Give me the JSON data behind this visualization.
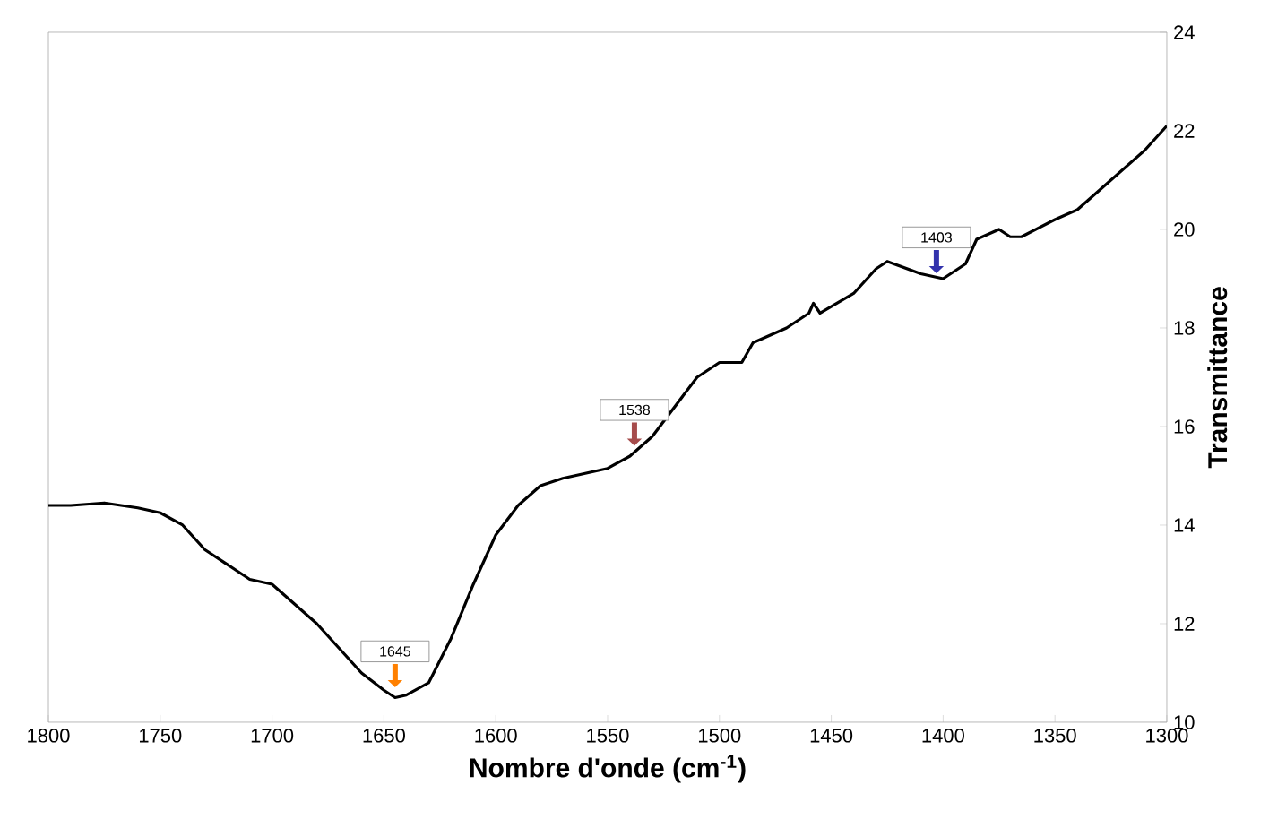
{
  "chart_data": {
    "type": "line",
    "xlabel": "Nombre d'onde (cm$^{-1}$)",
    "ylabel": "Transmittance",
    "x": [
      1800,
      1790,
      1775,
      1760,
      1750,
      1740,
      1730,
      1720,
      1710,
      1700,
      1690,
      1680,
      1670,
      1660,
      1650,
      1645,
      1640,
      1630,
      1620,
      1610,
      1600,
      1590,
      1580,
      1570,
      1560,
      1550,
      1540,
      1530,
      1520,
      1510,
      1500,
      1490,
      1485,
      1470,
      1460,
      1458,
      1455,
      1440,
      1430,
      1425,
      1410,
      1400,
      1390,
      1385,
      1375,
      1370,
      1365,
      1350,
      1340,
      1330,
      1320,
      1310,
      1300
    ],
    "series": [
      {
        "color": "#000000",
        "values": [
          14.4,
          14.4,
          14.45,
          14.35,
          14.25,
          14.0,
          13.5,
          13.2,
          12.9,
          12.8,
          12.4,
          12.0,
          11.5,
          11.0,
          10.65,
          10.5,
          10.55,
          10.8,
          11.7,
          12.8,
          13.8,
          14.4,
          14.8,
          14.95,
          15.05,
          15.15,
          15.4,
          15.8,
          16.4,
          17.0,
          17.3,
          17.3,
          17.7,
          18.0,
          18.3,
          18.5,
          18.3,
          18.7,
          19.2,
          19.35,
          19.1,
          19.0,
          19.3,
          19.8,
          20.0,
          19.85,
          19.85,
          20.2,
          20.4,
          20.8,
          21.2,
          21.6,
          22.1
        ]
      }
    ],
    "xlim": [
      1800,
      1300
    ],
    "xticks": [
      1800,
      1750,
      1700,
      1650,
      1600,
      1550,
      1500,
      1450,
      1400,
      1350,
      1300
    ],
    "ylim": [
      10,
      24
    ],
    "yticks": [
      10,
      12,
      14,
      16,
      18,
      20,
      22,
      24
    ],
    "grid": false,
    "marker": "none",
    "line_style": "solid",
    "annotations": [
      {
        "text": "1645",
        "x": 1645,
        "y": 10.6
      },
      {
        "text": "1538",
        "x": 1538,
        "y": 15.5
      },
      {
        "text": "1403",
        "x": 1403,
        "y": 19.0
      }
    ]
  }
}
